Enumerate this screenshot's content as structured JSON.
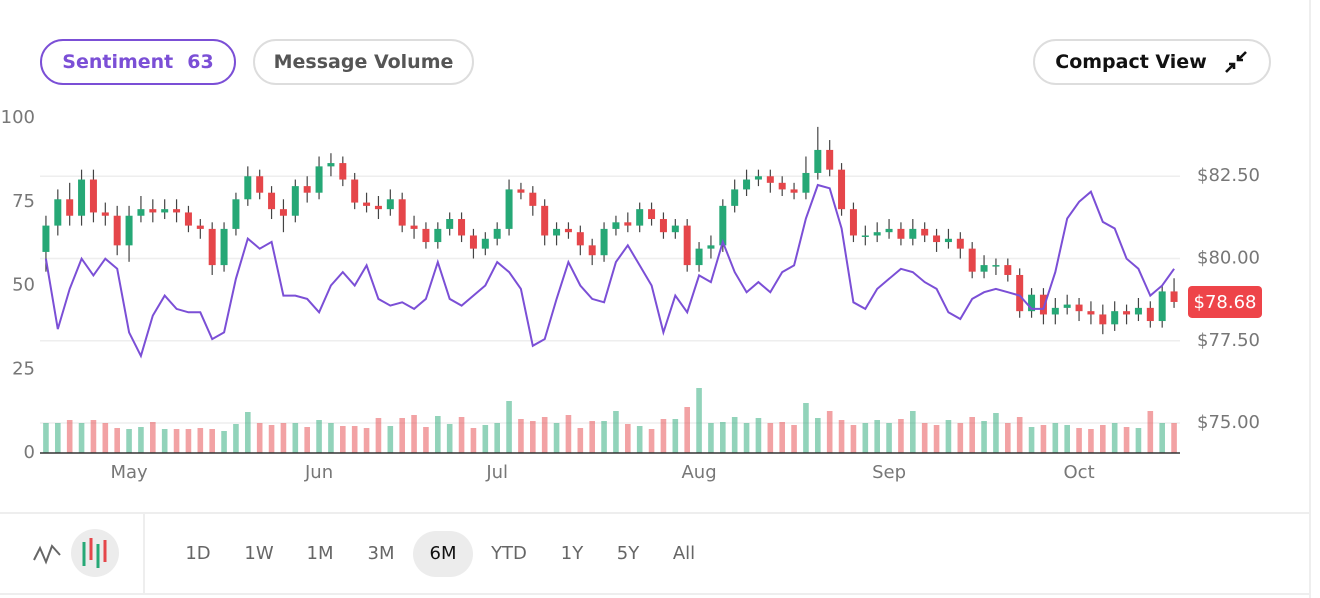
{
  "controls": {
    "sentiment_label": "Sentiment",
    "sentiment_value": 63,
    "message_volume": "Message Volume",
    "compact_view": "Compact View",
    "ranges": [
      "1D",
      "1W",
      "1M",
      "3M",
      "6M",
      "YTD",
      "1Y",
      "5Y",
      "All"
    ],
    "selected_range_index": 4
  },
  "chart_data": {
    "type": "candlestick",
    "categories": [
      null,
      null,
      null,
      null,
      null,
      null,
      null,
      "May",
      null,
      null,
      null,
      null,
      null,
      null,
      null,
      null,
      null,
      null,
      null,
      null,
      null,
      null,
      null,
      "Jun",
      null,
      null,
      null,
      null,
      null,
      null,
      null,
      null,
      null,
      null,
      null,
      null,
      null,
      null,
      "Jul",
      null,
      null,
      null,
      null,
      null,
      null,
      null,
      null,
      null,
      null,
      null,
      null,
      null,
      null,
      null,
      null,
      "Aug",
      null,
      null,
      null,
      null,
      null,
      null,
      null,
      null,
      null,
      null,
      null,
      null,
      null,
      null,
      null,
      "Sep",
      null,
      null,
      null,
      null,
      null,
      null,
      null,
      null,
      null,
      null,
      null,
      null,
      null,
      null,
      null,
      "Oct",
      null,
      null,
      null,
      null,
      null,
      null,
      null,
      null
    ],
    "ylim": [
      0,
      100
    ],
    "yticks": [
      0,
      25,
      50,
      75,
      100
    ],
    "y2lim": [
      74.09,
      84.27
    ],
    "y2ticks": [
      {
        "value": 75,
        "label": "$75.00"
      },
      {
        "value": 77.5,
        "label": "$77.50"
      },
      {
        "value": 80,
        "label": "$80.00"
      },
      {
        "value": 82.5,
        "label": "$82.50"
      }
    ],
    "grid": true,
    "candles": {
      "axis": "y2",
      "up_color": "#26a876",
      "down_color": "#e5464a",
      "open": [
        80.2,
        81.0,
        81.8,
        81.3,
        82.4,
        81.4,
        81.3,
        80.4,
        81.3,
        81.5,
        81.4,
        81.5,
        81.4,
        81.0,
        80.9,
        79.8,
        80.9,
        81.8,
        82.5,
        82.0,
        81.5,
        81.3,
        82.2,
        82.0,
        82.8,
        82.9,
        82.4,
        81.7,
        81.6,
        81.5,
        81.8,
        81.0,
        80.9,
        80.5,
        80.9,
        81.2,
        80.7,
        80.3,
        80.6,
        80.9,
        82.1,
        82.0,
        81.6,
        80.7,
        80.9,
        80.8,
        80.4,
        80.1,
        80.9,
        81.1,
        81.0,
        81.5,
        81.2,
        80.8,
        81.0,
        79.8,
        80.3,
        80.4,
        81.6,
        82.1,
        82.4,
        82.5,
        82.3,
        82.1,
        82.0,
        82.6,
        83.3,
        82.7,
        81.5,
        80.7,
        80.7,
        80.8,
        80.9,
        80.6,
        80.9,
        80.7,
        80.5,
        80.6,
        80.3,
        79.6,
        79.8,
        79.8,
        79.5,
        78.4,
        78.9,
        78.3,
        78.5,
        78.6,
        78.4,
        78.3,
        78.0,
        78.4,
        78.3,
        78.5,
        78.1,
        79.0
      ],
      "high": [
        81.3,
        82.1,
        82.3,
        82.7,
        82.7,
        81.7,
        81.6,
        81.6,
        81.9,
        81.8,
        81.8,
        81.8,
        81.6,
        81.2,
        81.1,
        81.1,
        82.0,
        82.8,
        82.7,
        82.2,
        81.8,
        82.4,
        82.5,
        83.1,
        83.2,
        83.1,
        82.6,
        82.0,
        81.9,
        82.1,
        82.0,
        81.3,
        81.1,
        81.1,
        81.4,
        81.4,
        80.9,
        80.8,
        81.1,
        82.4,
        82.3,
        82.2,
        81.8,
        81.1,
        81.1,
        81.0,
        80.6,
        81.1,
        81.3,
        81.4,
        81.7,
        81.7,
        81.4,
        81.2,
        81.2,
        80.5,
        80.7,
        81.8,
        82.4,
        82.7,
        82.7,
        82.7,
        82.5,
        82.3,
        83.1,
        84.0,
        83.6,
        82.9,
        81.7,
        81.0,
        81.1,
        81.2,
        81.1,
        81.2,
        81.1,
        80.9,
        80.9,
        80.8,
        80.5,
        80.1,
        80.0,
        80.0,
        79.7,
        79.1,
        79.1,
        78.8,
        78.9,
        78.8,
        78.7,
        78.6,
        78.7,
        78.6,
        78.8,
        78.7,
        79.2,
        79.4
      ],
      "low": [
        79.6,
        80.7,
        81.0,
        81.0,
        81.1,
        81.0,
        80.1,
        79.9,
        81.1,
        81.1,
        81.2,
        81.1,
        80.8,
        80.6,
        79.5,
        79.6,
        80.7,
        81.6,
        81.8,
        81.2,
        80.8,
        81.1,
        81.7,
        81.8,
        82.5,
        82.2,
        81.5,
        81.4,
        81.2,
        81.3,
        80.8,
        80.6,
        80.3,
        80.3,
        80.7,
        80.5,
        80.0,
        80.1,
        80.4,
        80.7,
        81.8,
        81.3,
        80.4,
        80.4,
        80.6,
        80.1,
        79.8,
        79.9,
        80.7,
        80.8,
        80.8,
        81.0,
        80.6,
        80.6,
        79.6,
        79.6,
        80.0,
        80.2,
        81.4,
        81.9,
        82.2,
        82.0,
        81.9,
        81.8,
        81.8,
        82.4,
        82.5,
        81.3,
        80.5,
        80.4,
        80.5,
        80.6,
        80.4,
        80.4,
        80.5,
        80.2,
        80.3,
        80.0,
        79.4,
        79.4,
        79.5,
        79.3,
        78.2,
        78.2,
        78.0,
        78.0,
        78.3,
        78.1,
        78.0,
        77.7,
        77.8,
        78.0,
        78.1,
        77.9,
        77.9,
        78.5
      ],
      "close": [
        81.0,
        81.8,
        81.3,
        82.4,
        81.4,
        81.3,
        80.4,
        81.3,
        81.5,
        81.4,
        81.5,
        81.4,
        81.0,
        80.9,
        79.8,
        80.9,
        81.8,
        82.5,
        82.0,
        81.5,
        81.3,
        82.2,
        82.0,
        82.8,
        82.9,
        82.4,
        81.7,
        81.6,
        81.5,
        81.8,
        81.0,
        80.9,
        80.5,
        80.9,
        81.2,
        80.7,
        80.3,
        80.6,
        80.9,
        82.1,
        82.0,
        81.6,
        80.7,
        80.9,
        80.8,
        80.4,
        80.1,
        80.9,
        81.1,
        81.0,
        81.5,
        81.2,
        80.8,
        81.0,
        79.8,
        80.3,
        80.4,
        81.6,
        82.1,
        82.4,
        82.5,
        82.3,
        82.1,
        82.0,
        82.6,
        83.3,
        82.7,
        81.5,
        80.7,
        80.7,
        80.8,
        80.9,
        80.6,
        80.9,
        80.7,
        80.5,
        80.6,
        80.3,
        79.6,
        79.8,
        79.8,
        79.5,
        78.4,
        78.9,
        78.3,
        78.5,
        78.6,
        78.4,
        78.3,
        78.0,
        78.4,
        78.3,
        78.5,
        78.1,
        79.0,
        78.68
      ]
    },
    "sentiment": {
      "axis": "y",
      "color": "#7b4fd6",
      "values": [
        58,
        37,
        49,
        58,
        53,
        58,
        55,
        36,
        29,
        41,
        47,
        43,
        42,
        42,
        34,
        36,
        52,
        64,
        61,
        63,
        47,
        47,
        46,
        42,
        50,
        54,
        50,
        56,
        46,
        44,
        45,
        43,
        46,
        57,
        46,
        44,
        47,
        50,
        57,
        54,
        49,
        32,
        34,
        46,
        57,
        50,
        46,
        45,
        57,
        62,
        56,
        50,
        36,
        47,
        42,
        53,
        51,
        63,
        54,
        48,
        51,
        48,
        54,
        56,
        70,
        80,
        79,
        67,
        45,
        43,
        49,
        52,
        55,
        54,
        51,
        49,
        42,
        40,
        46,
        48,
        49,
        48,
        47,
        43,
        43,
        54,
        70,
        75,
        78,
        69,
        67,
        58,
        55,
        47,
        50,
        55
      ]
    },
    "volume": {
      "values": [
        30,
        30,
        33,
        30,
        33,
        30,
        25,
        24,
        26,
        31,
        24,
        24,
        24,
        25,
        24,
        22,
        29,
        41,
        30,
        28,
        30,
        30,
        26,
        33,
        30,
        27,
        27,
        25,
        35,
        27,
        35,
        38,
        26,
        37,
        29,
        36,
        25,
        28,
        30,
        52,
        34,
        32,
        36,
        30,
        38,
        25,
        32,
        32,
        42,
        29,
        27,
        24,
        34,
        34,
        46,
        65,
        30,
        31,
        36,
        30,
        35,
        30,
        31,
        28,
        50,
        35,
        42,
        33,
        28,
        30,
        33,
        30,
        34,
        42,
        30,
        28,
        33,
        30,
        36,
        32,
        40,
        30,
        36,
        26,
        28,
        30,
        28,
        25,
        24,
        28,
        30,
        26,
        25,
        42,
        30,
        30
      ]
    },
    "last_price": {
      "value": 78.68,
      "label": "$78.68",
      "color": "#ee4449"
    }
  }
}
